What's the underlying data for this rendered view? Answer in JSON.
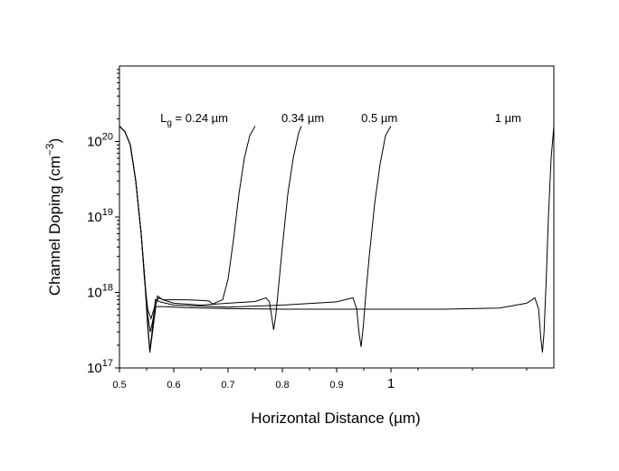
{
  "chart_data": {
    "type": "line",
    "title": "",
    "xlabel": "Horizontal Distance (µm)",
    "ylabel_parts": [
      "Channel Doping (cm",
      "−3",
      ")"
    ],
    "x_scale": "linear",
    "y_scale": "log",
    "xlim": [
      0.5,
      1.3
    ],
    "ylim": [
      1e+17,
      1e+21
    ],
    "grid": false,
    "x_ticks": [
      {
        "value": 0.5,
        "label": "0.5"
      },
      {
        "value": 0.6,
        "label": "0.6"
      },
      {
        "value": 0.7,
        "label": "0.7"
      },
      {
        "value": 0.8,
        "label": "0.8"
      },
      {
        "value": 0.9,
        "label": "0.9"
      },
      {
        "value": 1.0,
        "label": "1"
      }
    ],
    "y_ticks": [
      {
        "value": 1e+17,
        "base": "10",
        "exp": "17"
      },
      {
        "value": 1e+18,
        "base": "10",
        "exp": "18"
      },
      {
        "value": 1e+19,
        "base": "10",
        "exp": "19"
      },
      {
        "value": 1e+20,
        "base": "10",
        "exp": "20"
      }
    ],
    "annotations": [
      {
        "text_parts": [
          "L",
          "g",
          " = 0.24 µm"
        ],
        "x": 0.7,
        "y": 1.8e+20
      },
      {
        "text_parts": [
          "",
          "",
          "0.34 µm"
        ],
        "x": 0.877,
        "y": 1.8e+20
      },
      {
        "text_parts": [
          "",
          "",
          "0.5 µm"
        ],
        "x": 1.012,
        "y": 1.8e+20
      },
      {
        "text_parts": [
          "",
          "",
          "1 µm"
        ],
        "x": 1.24,
        "y": 1.8e+20
      }
    ],
    "series": [
      {
        "points": [
          [
            0.5,
            1.6e+20
          ],
          [
            0.51,
            1.35e+20
          ],
          [
            0.52,
            9e+19
          ],
          [
            0.53,
            3e+19
          ],
          [
            0.54,
            6e+18
          ],
          [
            0.546,
            1.5e+18
          ],
          [
            0.552,
            6e+17
          ],
          [
            0.558,
            4.5e+17
          ],
          [
            0.565,
            6.5e+17
          ],
          [
            0.572,
            8.5e+17
          ],
          [
            0.58,
            8e+17
          ],
          [
            0.6,
            8e+17
          ],
          [
            0.62,
            8e+17
          ],
          [
            0.64,
            7.9e+17
          ],
          [
            0.655,
            7.8e+17
          ],
          [
            0.665,
            7.7e+17
          ],
          [
            0.672,
            7e+17
          ],
          [
            0.68,
            7.5e+17
          ],
          [
            0.69,
            8e+17
          ],
          [
            0.7,
            1.5e+18
          ],
          [
            0.71,
            5e+18
          ],
          [
            0.72,
            2e+19
          ],
          [
            0.73,
            6e+19
          ],
          [
            0.74,
            1.2e+20
          ],
          [
            0.75,
            1.6e+20
          ]
        ]
      },
      {
        "points": [
          [
            0.5,
            1.6e+20
          ],
          [
            0.51,
            1.35e+20
          ],
          [
            0.52,
            9e+19
          ],
          [
            0.53,
            3e+19
          ],
          [
            0.54,
            6e+18
          ],
          [
            0.546,
            1.7e+18
          ],
          [
            0.552,
            5e+17
          ],
          [
            0.557,
            3e+17
          ],
          [
            0.562,
            4.5e+17
          ],
          [
            0.57,
            9e+17
          ],
          [
            0.58,
            8e+17
          ],
          [
            0.6,
            7.2e+17
          ],
          [
            0.65,
            6.8e+17
          ],
          [
            0.7,
            7.2e+17
          ],
          [
            0.75,
            7.6e+17
          ],
          [
            0.77,
            8.5e+17
          ],
          [
            0.776,
            7.5e+17
          ],
          [
            0.78,
            5e+17
          ],
          [
            0.784,
            3.2e+17
          ],
          [
            0.788,
            5e+17
          ],
          [
            0.792,
            1e+18
          ],
          [
            0.8,
            4e+18
          ],
          [
            0.81,
            2e+19
          ],
          [
            0.82,
            6e+19
          ],
          [
            0.83,
            1.3e+20
          ],
          [
            0.835,
            1.6e+20
          ]
        ]
      },
      {
        "points": [
          [
            0.5,
            1.6e+20
          ],
          [
            0.51,
            1.35e+20
          ],
          [
            0.52,
            9e+19
          ],
          [
            0.53,
            3e+19
          ],
          [
            0.54,
            6e+18
          ],
          [
            0.546,
            1.7e+18
          ],
          [
            0.552,
            4e+17
          ],
          [
            0.556,
            1.7e+17
          ],
          [
            0.56,
            3e+17
          ],
          [
            0.566,
            8e+17
          ],
          [
            0.575,
            7.5e+17
          ],
          [
            0.6,
            6.8e+17
          ],
          [
            0.7,
            6.4e+17
          ],
          [
            0.8,
            6.8e+17
          ],
          [
            0.9,
            7.5e+17
          ],
          [
            0.93,
            8.5e+17
          ],
          [
            0.937,
            6e+17
          ],
          [
            0.941,
            3e+17
          ],
          [
            0.945,
            1.9e+17
          ],
          [
            0.949,
            3.5e+17
          ],
          [
            0.954,
            1e+18
          ],
          [
            0.96,
            3e+18
          ],
          [
            0.97,
            1.5e+19
          ],
          [
            0.98,
            5e+19
          ],
          [
            0.99,
            1.2e+20
          ],
          [
            1.0,
            1.6e+20
          ]
        ]
      },
      {
        "points": [
          [
            0.5,
            1.6e+20
          ],
          [
            0.51,
            1.35e+20
          ],
          [
            0.52,
            9e+19
          ],
          [
            0.53,
            3e+19
          ],
          [
            0.54,
            6e+18
          ],
          [
            0.546,
            1.7e+18
          ],
          [
            0.552,
            3.5e+17
          ],
          [
            0.556,
            1.6e+17
          ],
          [
            0.561,
            3e+17
          ],
          [
            0.567,
            6.5e+17
          ],
          [
            0.58,
            6.5e+17
          ],
          [
            0.62,
            6.3e+17
          ],
          [
            0.7,
            6.1e+17
          ],
          [
            0.8,
            6e+17
          ],
          [
            0.9,
            6e+17
          ],
          [
            1.0,
            6e+17
          ],
          [
            1.1,
            6e+17
          ],
          [
            1.2,
            6.2e+17
          ],
          [
            1.25,
            7.2e+17
          ],
          [
            1.265,
            8.5e+17
          ],
          [
            1.272,
            6e+17
          ],
          [
            1.276,
            2.5e+17
          ],
          [
            1.279,
            1.6e+17
          ],
          [
            1.282,
            3e+17
          ],
          [
            1.286,
            1.5e+18
          ],
          [
            1.29,
            1e+19
          ],
          [
            1.295,
            6e+19
          ],
          [
            1.3,
            1.6e+20
          ]
        ]
      }
    ]
  }
}
